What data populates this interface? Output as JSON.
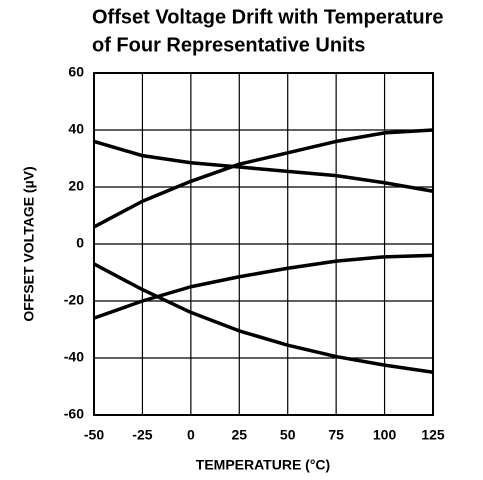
{
  "chart_data": {
    "type": "line",
    "title": [
      "Offset Voltage Drift with Temperature",
      "of Four Representative Units"
    ],
    "xlabel": "TEMPERATURE (°C)",
    "ylabel": "OFFSET VOLTAGE (µV)",
    "x": [
      -50,
      -25,
      0,
      25,
      50,
      75,
      100,
      125
    ],
    "series": [
      {
        "color": "#000000",
        "values": [
          6,
          15,
          22,
          28,
          32,
          36,
          39,
          40
        ]
      },
      {
        "color": "#000000",
        "values": [
          36,
          31,
          28.5,
          27,
          25.5,
          24,
          21.5,
          18.5
        ]
      },
      {
        "color": "#000000",
        "values": [
          -26,
          -20,
          -15,
          -11.5,
          -8.5,
          -6,
          -4.5,
          -4
        ]
      },
      {
        "color": "#000000",
        "values": [
          -7,
          -16,
          -24,
          -30.5,
          -35.5,
          -39.5,
          -42.5,
          -45
        ]
      }
    ],
    "xlim": [
      -50,
      125
    ],
    "xticks": [
      -50,
      -25,
      0,
      25,
      50,
      75,
      100,
      125
    ],
    "ylim": [
      -60,
      60
    ],
    "yticks": [
      -60,
      -40,
      -20,
      0,
      20,
      40,
      60
    ],
    "grid": true
  }
}
